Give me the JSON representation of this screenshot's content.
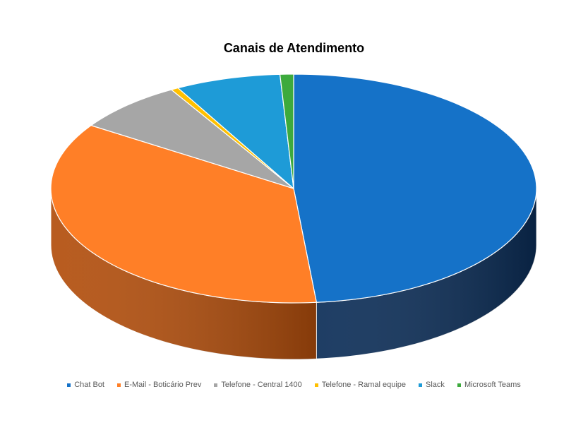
{
  "chart_data": {
    "type": "pie",
    "title": "Canais de Atendimento",
    "legend_position": "bottom",
    "categories": [
      "Chat Bot",
      "E-Mail - Boticário Prev",
      "Telefone - Central 1400",
      "Telefone - Ramal equipe",
      "Slack",
      "Microsoft Teams"
    ],
    "values": [
      48.5,
      35.8,
      7.3,
      0.5,
      7.0,
      0.9
    ],
    "colors": [
      "#1572C8",
      "#FF7F27",
      "#A6A6A6",
      "#FFC000",
      "#1E9BD7",
      "#3DAA3D"
    ],
    "side_colors": [
      "#0B2D57",
      "#B24E0C",
      "#6E6E6E",
      "#A07800",
      "#0E5C82",
      "#226C22"
    ]
  }
}
